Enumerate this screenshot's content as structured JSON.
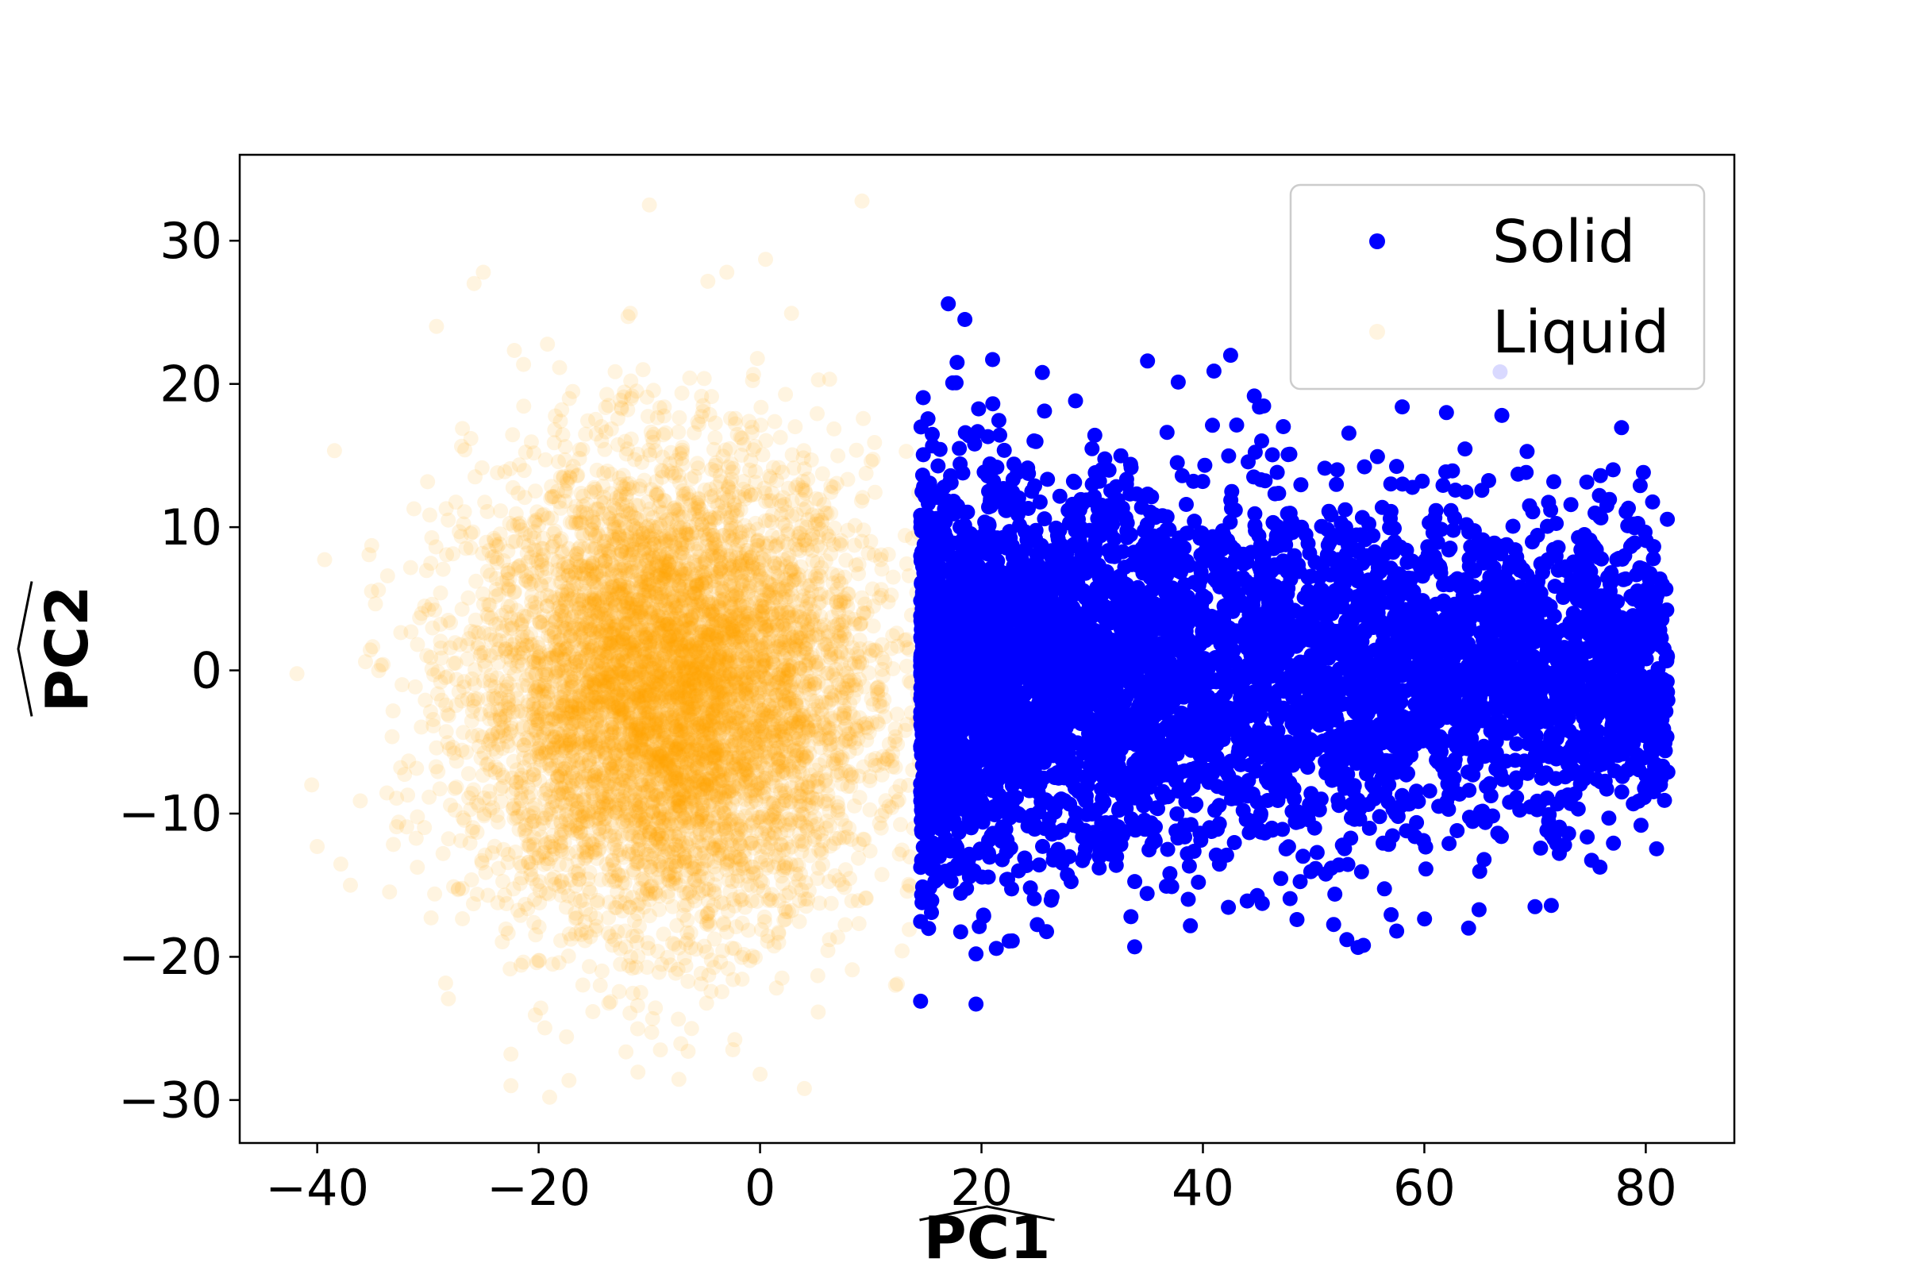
{
  "chart_data": {
    "type": "scatter",
    "title": "",
    "xlabel": "PC1",
    "ylabel": "PC2",
    "xlabel_has_hat": true,
    "ylabel_has_hat": true,
    "xlim": [
      -47,
      88
    ],
    "ylim": [
      -33,
      36
    ],
    "xticks": [
      -40,
      -20,
      0,
      20,
      40,
      60,
      80
    ],
    "yticks": [
      -30,
      -20,
      -10,
      0,
      10,
      20,
      30
    ],
    "xtick_labels": [
      "−40",
      "−20",
      "0",
      "20",
      "40",
      "60",
      "80"
    ],
    "ytick_labels": [
      "−30",
      "−20",
      "−10",
      "0",
      "10",
      "20",
      "30"
    ],
    "grid": false,
    "legend_position": "top-right",
    "series": [
      {
        "name": "Solid",
        "color": "#0000ff",
        "alpha": 1.0,
        "distribution": {
          "x_range": [
            14.5,
            82
          ],
          "y_center": 0,
          "y_spread_near": 7,
          "y_spread_far": 5
        },
        "points": [
          [
            14.5,
            -23.1
          ],
          [
            19.5,
            -23.3
          ],
          [
            17.0,
            25.6
          ],
          [
            18.5,
            24.5
          ],
          [
            17.8,
            21.5
          ],
          [
            21.0,
            21.7
          ],
          [
            25.5,
            20.8
          ],
          [
            35.0,
            21.6
          ],
          [
            42.5,
            22.0
          ],
          [
            41.0,
            20.9
          ],
          [
            67.0,
            17.8
          ],
          [
            62.0,
            18.0
          ],
          [
            58.0,
            18.4
          ],
          [
            79.5,
            12.9
          ],
          [
            79.0,
            8.9
          ],
          [
            81.5,
            6.0
          ],
          [
            82.0,
            -7.1
          ],
          [
            80.8,
            -5.0
          ],
          [
            70.0,
            -16.5
          ],
          [
            64.0,
            -18.0
          ],
          [
            54.5,
            -19.2
          ],
          [
            53.0,
            -18.8
          ],
          [
            19.5,
            -19.8
          ],
          [
            22.5,
            -18.9
          ],
          [
            57.5,
            -18.2
          ],
          [
            48.5,
            -17.4
          ],
          [
            33.5,
            -17.2
          ],
          [
            44.0,
            -16.1
          ]
        ]
      },
      {
        "name": "Liquid",
        "color": "#ffa500",
        "alpha": 0.12,
        "distribution": {
          "x_center": -8,
          "x_sd": 9,
          "x_max": 14.5,
          "y_center": -1.5,
          "y_sd": 8
        },
        "points": [
          [
            -10.0,
            32.5
          ],
          [
            -25.0,
            27.8
          ],
          [
            -3.0,
            27.8
          ],
          [
            0.5,
            28.7
          ],
          [
            -40.5,
            -8.0
          ],
          [
            -40.0,
            -12.3
          ],
          [
            -37.0,
            -15.0
          ],
          [
            -22.5,
            -26.8
          ],
          [
            -22.5,
            -29.0
          ],
          [
            -19.0,
            -29.8
          ],
          [
            0.0,
            -28.2
          ],
          [
            4.0,
            -29.2
          ],
          [
            -9.0,
            -26.5
          ],
          [
            -6.5,
            -26.6
          ]
        ]
      }
    ],
    "legend": [
      {
        "label": "Solid",
        "color": "#0000ff",
        "alpha": 1.0
      },
      {
        "label": "Liquid",
        "color": "#ffa500",
        "alpha": 0.12
      }
    ]
  }
}
